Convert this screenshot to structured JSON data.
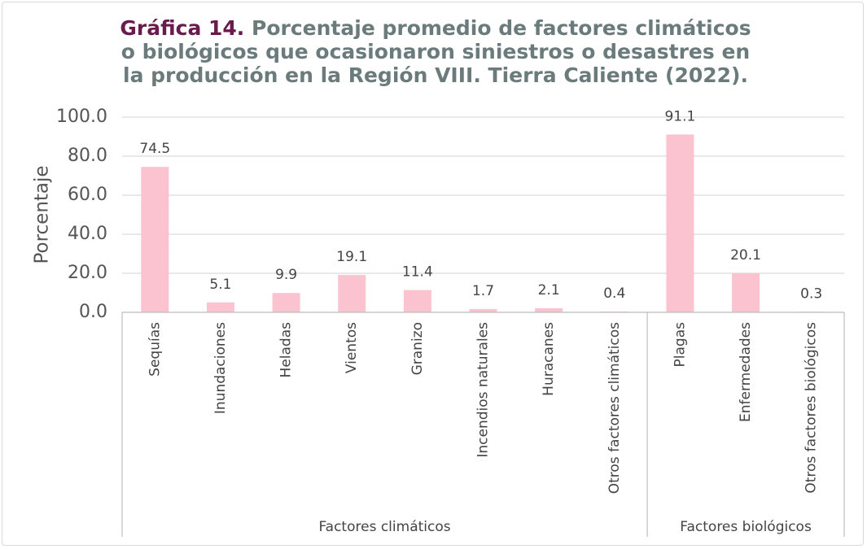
{
  "chart_data": {
    "type": "bar",
    "title_label": "Gráfica 14.",
    "title": "Porcentaje promedio de factores climáticos o biológicos que ocasionaron siniestros o desastres en la producción en la Región VIII. Tierra Caliente (2022).",
    "y_label": "Porcentaje",
    "color": "#fbc3cf",
    "grid": true,
    "ylim": [
      0,
      100
    ],
    "yticks": [
      {
        "value": 0,
        "label": "0.0"
      },
      {
        "value": 20,
        "label": "20.0"
      },
      {
        "value": 40,
        "label": "40.0"
      },
      {
        "value": 60,
        "label": "60.0"
      },
      {
        "value": 80,
        "label": "80.0"
      },
      {
        "value": 100,
        "label": "100.0"
      }
    ],
    "groups": [
      {
        "name": "Factores climáticos",
        "categories": [
          "Sequías",
          "Inundaciones",
          "Heladas",
          "Vientos",
          "Granizo",
          "Incendios naturales",
          "Huracanes",
          "Otros factores climáticos"
        ],
        "values": [
          74.5,
          5.1,
          9.9,
          19.1,
          11.4,
          1.7,
          2.1,
          0.4
        ]
      },
      {
        "name": "Factores biológicos",
        "categories": [
          "Plagas",
          "Enfermedades",
          "Otros factores biológicos"
        ],
        "values": [
          91.1,
          20.1,
          0.3
        ]
      }
    ]
  }
}
